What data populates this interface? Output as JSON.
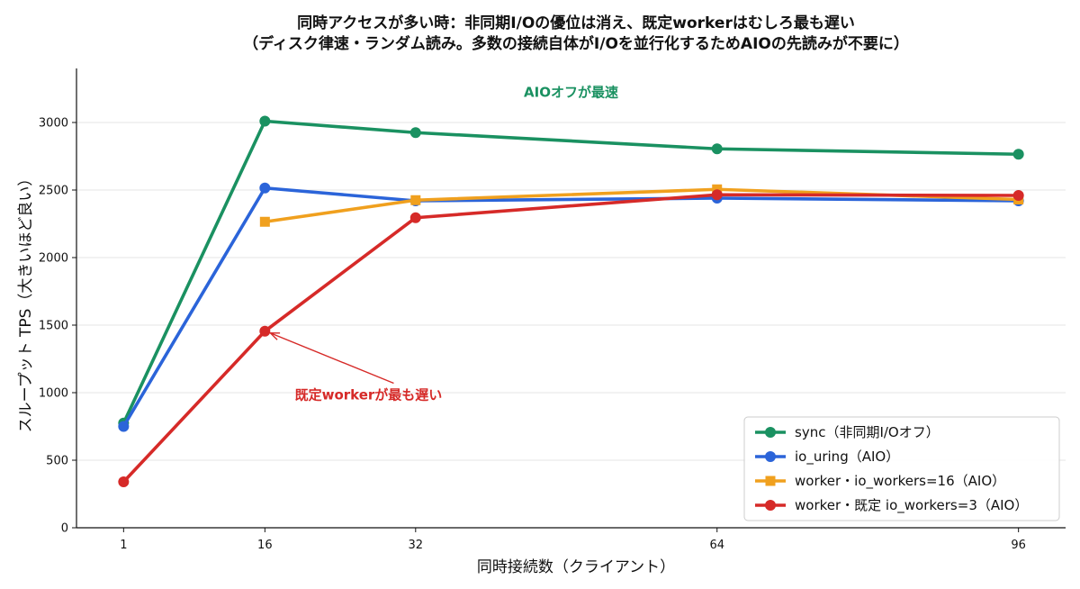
{
  "chart_data": {
    "type": "line",
    "title_line1": "同時アクセスが多い時：非同期I/Oの優位は消え、既定workerはむしろ最も遅い",
    "title_line2": "（ディスク律速・ランダム読み。多数の接続自体がI/Oを並行化するためAIOの先読みが不要に）",
    "xlabel": "同時接続数（クライアント）",
    "ylabel": "スループット TPS（大きいほど良い）",
    "x_ticks": [
      1,
      16,
      32,
      64,
      96
    ],
    "x_tick_labels": [
      "1",
      "16",
      "32",
      "64",
      "96"
    ],
    "xlim": [
      -4,
      101
    ],
    "ylim": [
      0,
      3400
    ],
    "y_ticks": [
      0,
      500,
      1000,
      1500,
      2000,
      2500,
      3000
    ],
    "y_tick_labels": [
      "0",
      "500",
      "1000",
      "1500",
      "2000",
      "2500",
      "3000"
    ],
    "grid": "horizontal",
    "legend_position": "lower-right",
    "series": [
      {
        "name": "sync（非同期I/Oオフ）",
        "color": "#1a9161",
        "marker": "circle",
        "x": [
          1,
          16,
          32,
          64,
          96
        ],
        "y": [
          775,
          3010,
          2925,
          2805,
          2765
        ]
      },
      {
        "name": "io_uring（AIO）",
        "color": "#2b64d9",
        "marker": "circle",
        "x": [
          1,
          16,
          32,
          64,
          96
        ],
        "y": [
          750,
          2515,
          2420,
          2440,
          2420
        ]
      },
      {
        "name": "worker・io_workers=16（AIO）",
        "color": "#f0a01e",
        "marker": "square",
        "x": [
          16,
          32,
          64,
          96
        ],
        "y": [
          2265,
          2425,
          2505,
          2430
        ]
      },
      {
        "name": "worker・既定 io_workers=3（AIO）",
        "color": "#d62a28",
        "marker": "circle",
        "x": [
          1,
          16,
          32,
          64,
          96
        ],
        "y": [
          340,
          1455,
          2295,
          2465,
          2460
        ]
      }
    ],
    "annotations": [
      {
        "text": "AIOオフが最速",
        "color": "#1a9161",
        "x": 48.5,
        "y": 3190
      },
      {
        "text": "既定workerが最も遅い",
        "color": "#d62a28",
        "x": 27,
        "y": 950,
        "arrow_to": {
          "x": 16,
          "y": 1455
        }
      }
    ]
  }
}
